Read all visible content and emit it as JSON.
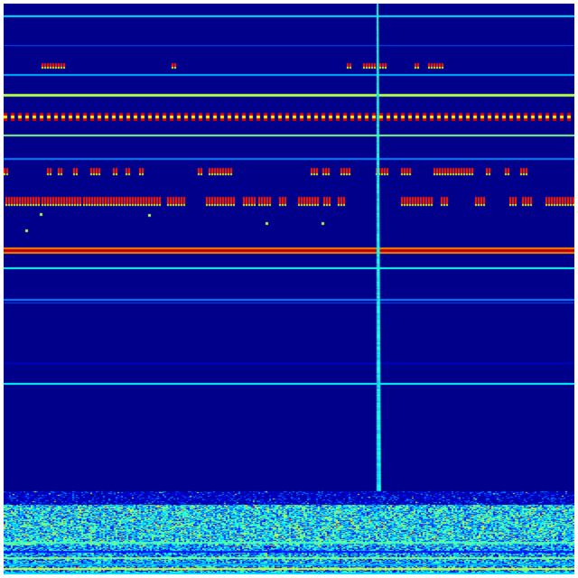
{
  "spectrogram": {
    "colormap": "jet",
    "background_color": "#00008a",
    "colormap_stops": [
      "#00007f",
      "#0000ff",
      "#0080ff",
      "#00ffff",
      "#80ff80",
      "#ffff00",
      "#ff8000",
      "#ff0000",
      "#7f0000"
    ]
  }
}
